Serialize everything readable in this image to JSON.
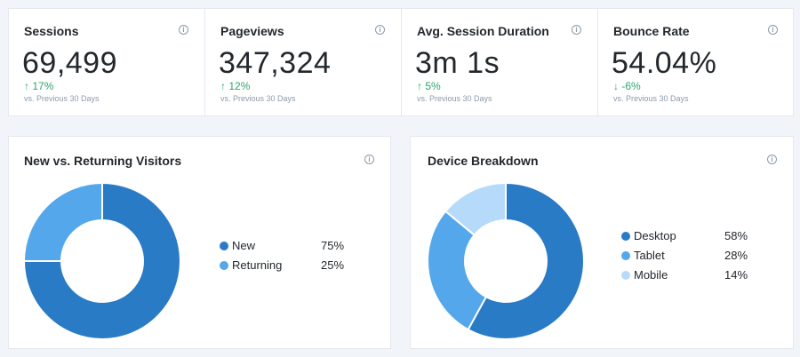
{
  "metrics": [
    {
      "title": "Sessions",
      "value": "69,499",
      "change": "17%",
      "direction": "up",
      "compare": "vs. Previous 30 Days"
    },
    {
      "title": "Pageviews",
      "value": "347,324",
      "change": "12%",
      "direction": "up",
      "compare": "vs. Previous 30 Days"
    },
    {
      "title": "Avg. Session Duration",
      "value": "3m 1s",
      "change": "5%",
      "direction": "up",
      "compare": "vs. Previous 30 Days"
    },
    {
      "title": "Bounce Rate",
      "value": "54.04%",
      "change": "-6%",
      "direction": "down",
      "compare": "vs. Previous 30 Days"
    }
  ],
  "info_glyph": "i",
  "arrows": {
    "up": "↑",
    "down": "↓"
  },
  "colors": {
    "dark_blue": "#2a7bc6",
    "mid_blue": "#53a7ea",
    "light_blue": "#b6dbfa",
    "green": "#2ba56d"
  },
  "chart_data": [
    {
      "type": "pie",
      "title": "New vs. Returning Visitors",
      "categories": [
        "New",
        "Returning"
      ],
      "values": [
        75,
        25
      ],
      "labels": [
        "75%",
        "25%"
      ],
      "colors": [
        "#2a7bc6",
        "#53a7ea"
      ],
      "donut": true
    },
    {
      "type": "pie",
      "title": "Device Breakdown",
      "categories": [
        "Desktop",
        "Tablet",
        "Mobile"
      ],
      "values": [
        58,
        28,
        14
      ],
      "labels": [
        "58%",
        "28%",
        "14%"
      ],
      "colors": [
        "#2a7bc6",
        "#53a7ea",
        "#b6dbfa"
      ],
      "donut": true
    }
  ]
}
